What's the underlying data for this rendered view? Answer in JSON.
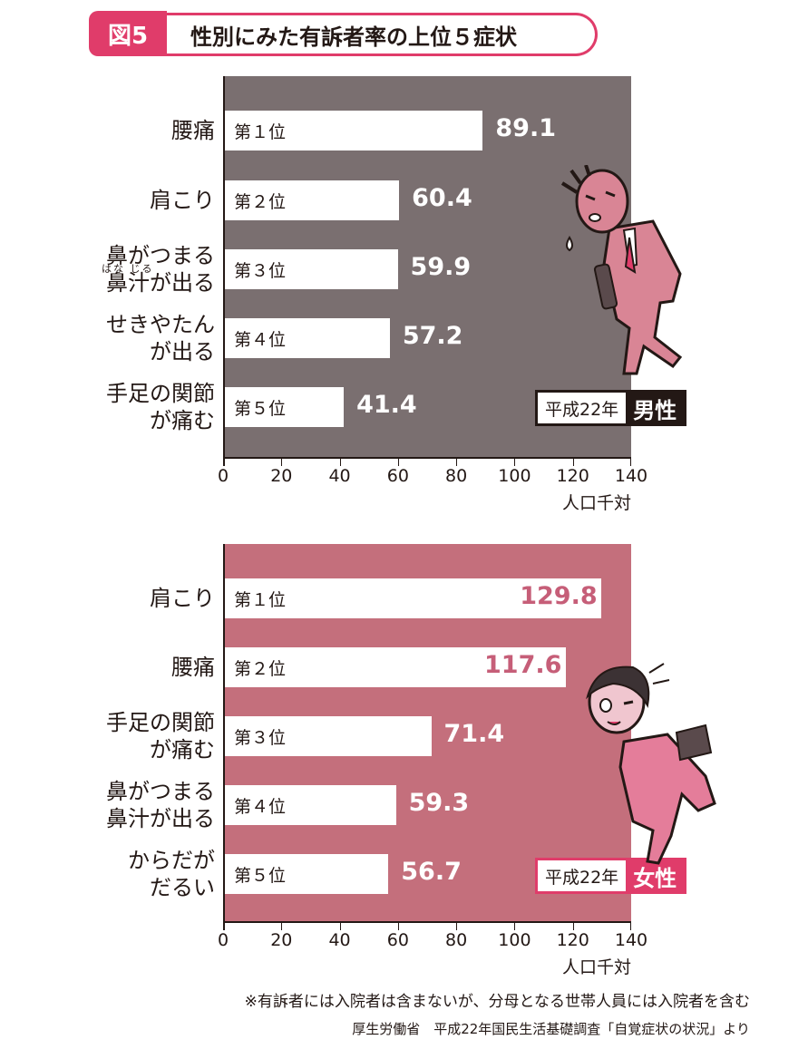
{
  "header": {
    "figure_label": "図5",
    "title": "性別にみた有訴者率の上位５症状"
  },
  "colors": {
    "accent": "#e03c6a",
    "male_bg": "#7a6f70",
    "female_bg": "#c46f7c",
    "female_value": "#c65e78",
    "male_value": "#ffffff"
  },
  "furigana": "はな じる",
  "chart_data": [
    {
      "type": "bar",
      "orientation": "horizontal",
      "panel": "male",
      "categories": [
        [
          "腰痛"
        ],
        [
          "肩こり"
        ],
        [
          "鼻がつまる",
          "鼻汁が出る"
        ],
        [
          "せきやたん",
          "が出る"
        ],
        [
          "手足の関節",
          "が痛む"
        ]
      ],
      "ranks": [
        "第１位",
        "第２位",
        "第３位",
        "第４位",
        "第５位"
      ],
      "values": [
        89.1,
        60.4,
        59.9,
        57.2,
        41.4
      ],
      "value_labels": [
        "89.1",
        "60.4",
        "59.9",
        "57.2",
        "41.4"
      ],
      "xlim": [
        0,
        140
      ],
      "ticks": [
        "0",
        "20",
        "40",
        "60",
        "80",
        "100",
        "120",
        "140"
      ],
      "unit": "人口千対",
      "legend": {
        "year": "平成22年",
        "sex": "男性"
      }
    },
    {
      "type": "bar",
      "orientation": "horizontal",
      "panel": "female",
      "categories": [
        [
          "肩こり"
        ],
        [
          "腰痛"
        ],
        [
          "手足の関節",
          "が痛む"
        ],
        [
          "鼻がつまる",
          "鼻汁が出る"
        ],
        [
          "からだが",
          "だるい"
        ]
      ],
      "ranks": [
        "第１位",
        "第２位",
        "第３位",
        "第４位",
        "第５位"
      ],
      "values": [
        129.8,
        117.6,
        71.4,
        59.3,
        56.7
      ],
      "value_labels": [
        "129.8",
        "117.6",
        "71.4",
        "59.3",
        "56.7"
      ],
      "xlim": [
        0,
        140
      ],
      "ticks": [
        "0",
        "20",
        "40",
        "60",
        "80",
        "100",
        "120",
        "140"
      ],
      "unit": "人口千対",
      "legend": {
        "year": "平成22年",
        "sex": "女性"
      }
    }
  ],
  "footnotes": {
    "note": "※有訴者には入院者は含まないが、分母となる世帯人員には入院者を含む",
    "source": "厚生労働省　平成22年国民生活基礎調査「自覚症状の状況」より"
  }
}
